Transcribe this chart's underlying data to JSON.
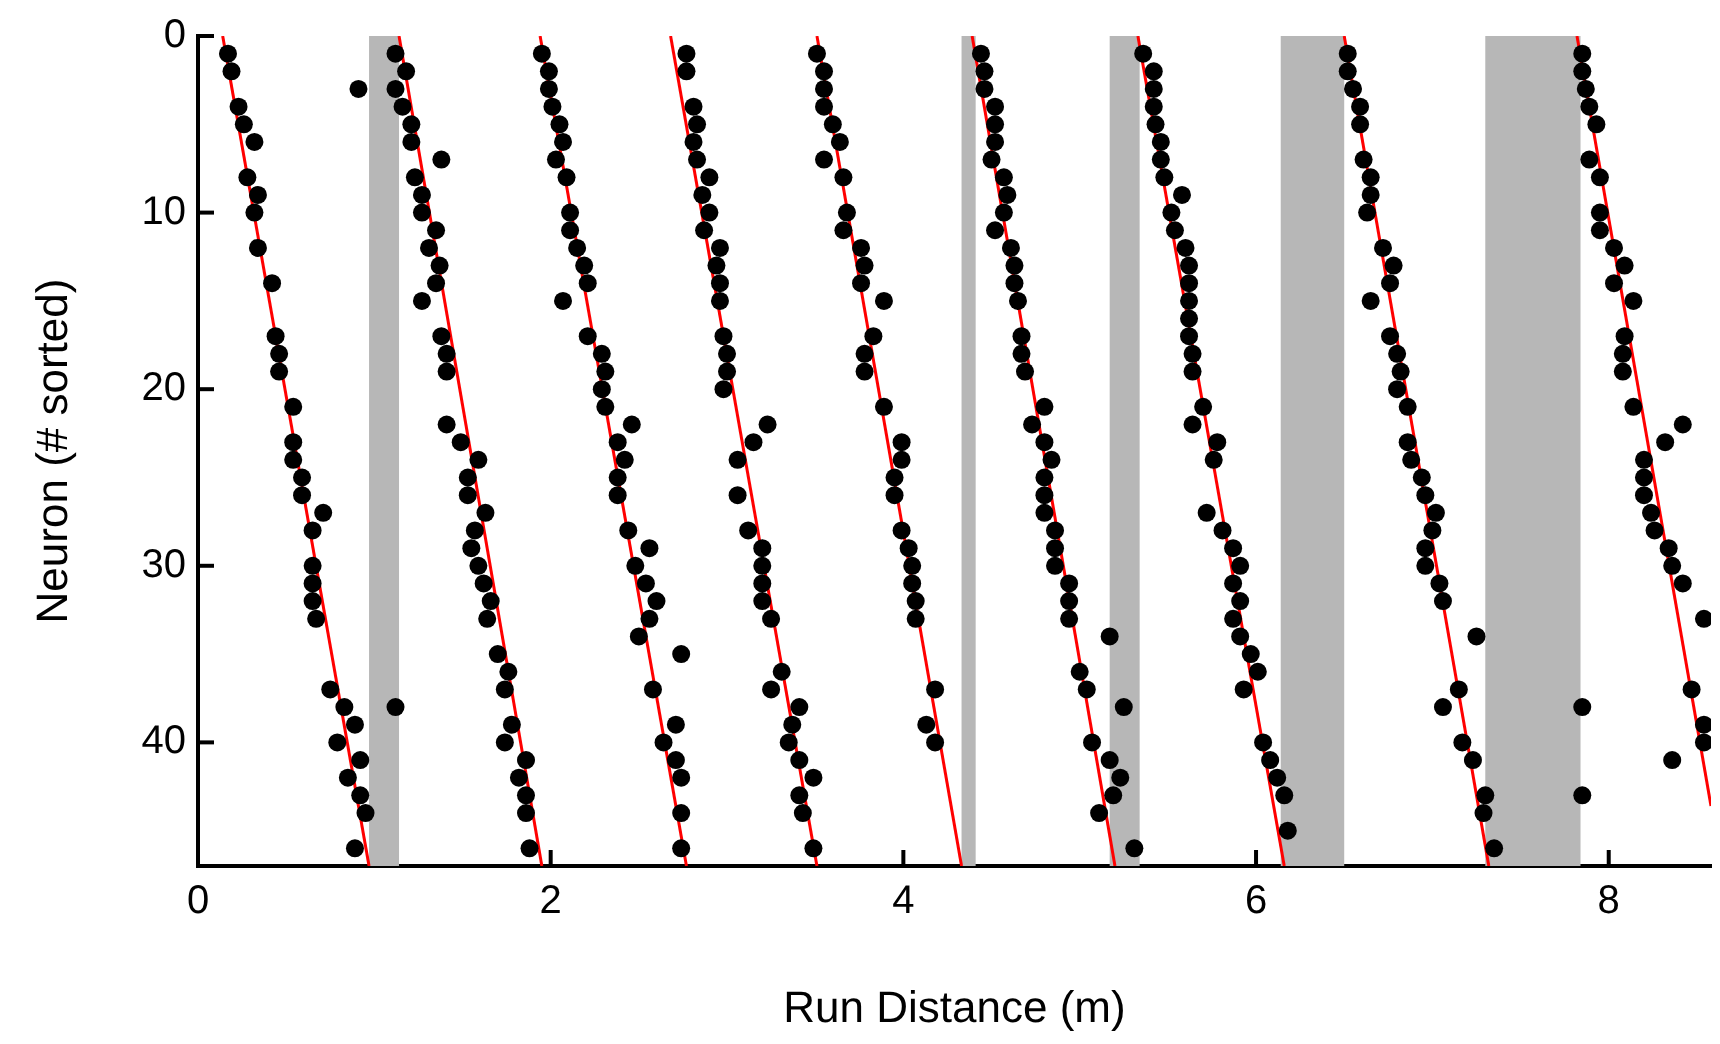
{
  "chart_data": {
    "type": "scatter",
    "xlabel": "Run Distance (m)",
    "ylabel": "Neuron (# sorted)",
    "xlim": [
      0,
      8.58
    ],
    "ylim": [
      47,
      0
    ],
    "xticks": [
      0,
      2,
      4,
      6,
      8
    ],
    "yticks": [
      0,
      10,
      20,
      30,
      40
    ],
    "series": [
      {
        "marker": "circle",
        "color": "#000000",
        "x": [
          0.17,
          0.19,
          0.91,
          0.23,
          0.26,
          0.32,
          0.28,
          0.34,
          0.32,
          0.34,
          0.42,
          0.44,
          0.46,
          0.46,
          0.54,
          0.54,
          0.54,
          0.59,
          0.59,
          0.71,
          0.65,
          0.65,
          0.65,
          0.65,
          0.67,
          0.75,
          0.83,
          0.89,
          0.79,
          0.92,
          0.85,
          0.92,
          0.95,
          0.89
        ],
        "values": [
          1,
          2,
          3,
          4,
          5,
          6,
          8,
          9,
          10,
          12,
          14,
          17,
          18,
          19,
          21,
          23,
          24,
          25,
          26,
          27,
          28,
          30,
          31,
          32,
          33,
          37,
          38,
          39,
          40,
          41,
          42,
          43,
          44,
          46
        ]
      },
      {
        "marker": "circle",
        "color": "#000000",
        "x": [
          1.12,
          1.18,
          1.12,
          1.16,
          1.21,
          1.21,
          1.38,
          1.23,
          1.27,
          1.27,
          1.35,
          1.31,
          1.37,
          1.35,
          1.27,
          1.38,
          1.41,
          1.41,
          1.41,
          1.49,
          1.59,
          1.53,
          1.53,
          1.63,
          1.57,
          1.55,
          1.59,
          1.62,
          1.66,
          1.64,
          1.7,
          1.76,
          1.74,
          1.12,
          1.78,
          1.74,
          1.86,
          1.82,
          1.86,
          1.86,
          1.88
        ],
        "values": [
          1,
          2,
          3,
          4,
          5,
          6,
          7,
          8,
          9,
          10,
          11,
          12,
          13,
          14,
          15,
          17,
          18,
          19,
          22,
          23,
          24,
          25,
          26,
          27,
          28,
          29,
          30,
          31,
          32,
          33,
          35,
          36,
          37,
          38,
          39,
          40,
          41,
          42,
          43,
          44,
          46
        ]
      },
      {
        "marker": "circle",
        "color": "#000000",
        "x": [
          1.95,
          1.99,
          1.99,
          2.01,
          2.05,
          2.07,
          2.03,
          2.09,
          2.11,
          2.11,
          2.15,
          2.19,
          2.21,
          2.07,
          2.21,
          2.29,
          2.31,
          2.29,
          2.31,
          2.46,
          2.38,
          2.42,
          2.38,
          2.38,
          2.44,
          2.56,
          2.48,
          2.54,
          2.6,
          2.56,
          2.5,
          2.74,
          2.58,
          2.71,
          2.64,
          2.71,
          2.74,
          2.74,
          2.74
        ],
        "values": [
          1,
          2,
          3,
          4,
          5,
          6,
          7,
          8,
          10,
          11,
          12,
          13,
          14,
          15,
          17,
          18,
          19,
          20,
          21,
          22,
          23,
          24,
          25,
          26,
          28,
          29,
          30,
          31,
          32,
          33,
          34,
          35,
          37,
          39,
          40,
          41,
          42,
          44,
          46
        ]
      },
      {
        "marker": "circle",
        "color": "#000000",
        "x": [
          2.77,
          2.77,
          2.81,
          2.83,
          2.81,
          2.83,
          2.9,
          2.86,
          2.9,
          2.87,
          2.96,
          2.94,
          2.96,
          2.96,
          2.98,
          3.0,
          3.0,
          2.98,
          3.23,
          3.15,
          3.06,
          3.06,
          3.12,
          3.2,
          3.2,
          3.2,
          3.2,
          3.25,
          3.31,
          3.25,
          3.41,
          3.37,
          3.35,
          3.41,
          3.49,
          3.41,
          3.43,
          3.49
        ],
        "values": [
          1,
          2,
          4,
          5,
          6,
          7,
          8,
          9,
          10,
          11,
          12,
          13,
          14,
          15,
          17,
          18,
          19,
          20,
          22,
          23,
          24,
          26,
          28,
          29,
          30,
          31,
          32,
          33,
          36,
          37,
          38,
          39,
          40,
          41,
          42,
          43,
          44,
          46
        ]
      },
      {
        "marker": "circle",
        "color": "#000000",
        "x": [
          3.51,
          3.55,
          3.55,
          3.55,
          3.6,
          3.64,
          3.55,
          3.66,
          3.68,
          3.66,
          3.76,
          3.78,
          3.76,
          3.89,
          3.83,
          3.78,
          3.78,
          3.89,
          3.99,
          3.99,
          3.95,
          3.95,
          3.99,
          4.03,
          4.05,
          4.05,
          4.07,
          4.07,
          4.18,
          4.13,
          4.18
        ],
        "values": [
          1,
          2,
          3,
          4,
          5,
          6,
          7,
          8,
          10,
          11,
          12,
          13,
          14,
          15,
          17,
          18,
          19,
          21,
          23,
          24,
          25,
          26,
          28,
          29,
          30,
          31,
          32,
          33,
          37,
          39,
          40
        ]
      },
      {
        "marker": "circle",
        "color": "#000000",
        "x": [
          4.44,
          4.46,
          4.46,
          4.52,
          4.52,
          4.52,
          4.5,
          4.57,
          4.59,
          4.57,
          4.52,
          4.61,
          4.63,
          4.63,
          4.65,
          4.67,
          4.67,
          4.69,
          4.8,
          4.73,
          4.8,
          4.84,
          4.8,
          4.8,
          4.8,
          4.86,
          4.86,
          4.86,
          4.94,
          4.94,
          4.94,
          5.17,
          5.0,
          5.04,
          5.25,
          5.07,
          5.17,
          5.23,
          5.19,
          5.11,
          5.31
        ],
        "values": [
          1,
          2,
          3,
          4,
          5,
          6,
          7,
          8,
          9,
          10,
          11,
          12,
          13,
          14,
          15,
          17,
          18,
          19,
          21,
          22,
          23,
          24,
          25,
          26,
          27,
          28,
          29,
          30,
          31,
          32,
          33,
          34,
          36,
          37,
          38,
          40,
          41,
          42,
          43,
          44,
          46
        ]
      },
      {
        "marker": "circle",
        "color": "#000000",
        "x": [
          5.36,
          5.42,
          5.42,
          5.42,
          5.43,
          5.46,
          5.46,
          5.48,
          5.58,
          5.52,
          5.54,
          5.6,
          5.62,
          5.62,
          5.62,
          5.62,
          5.62,
          5.64,
          5.64,
          5.7,
          5.64,
          5.78,
          5.76,
          5.72,
          5.81,
          5.87,
          5.91,
          5.87,
          5.91,
          5.87,
          5.91,
          5.97,
          6.01,
          5.93,
          6.04,
          6.08,
          6.12,
          6.16,
          6.18
        ],
        "values": [
          1,
          2,
          3,
          4,
          5,
          6,
          7,
          8,
          9,
          10,
          11,
          12,
          13,
          14,
          15,
          16,
          17,
          18,
          19,
          21,
          22,
          23,
          24,
          27,
          28,
          29,
          30,
          31,
          32,
          33,
          34,
          35,
          36,
          37,
          40,
          41,
          42,
          43,
          45
        ]
      },
      {
        "marker": "circle",
        "color": "#000000",
        "x": [
          6.52,
          6.52,
          6.55,
          6.59,
          6.59,
          6.61,
          6.65,
          6.65,
          6.63,
          6.72,
          6.78,
          6.76,
          6.65,
          6.76,
          6.8,
          6.82,
          6.8,
          6.86,
          6.86,
          6.88,
          6.94,
          6.96,
          7.02,
          7.0,
          6.96,
          6.96,
          7.04,
          7.06,
          7.25,
          7.15,
          7.06,
          7.17,
          7.23,
          7.3,
          7.29,
          7.35,
          7.85,
          7.85
        ],
        "values": [
          1,
          2,
          3,
          4,
          5,
          7,
          8,
          9,
          10,
          12,
          13,
          14,
          15,
          17,
          18,
          19,
          20,
          21,
          23,
          24,
          25,
          26,
          27,
          28,
          29,
          30,
          31,
          32,
          34,
          37,
          38,
          40,
          41,
          43,
          44,
          46,
          38,
          43
        ]
      },
      {
        "marker": "circle",
        "color": "#000000",
        "x": [
          7.85,
          7.85,
          7.87,
          7.89,
          7.93,
          7.89,
          7.95,
          7.95,
          7.95,
          8.03,
          8.09,
          8.03,
          8.14,
          8.09,
          8.08,
          8.08,
          8.14,
          8.42,
          8.32,
          8.2,
          8.2,
          8.2,
          8.24,
          8.26,
          8.34,
          8.36,
          8.42,
          8.54,
          8.47,
          8.54,
          8.54,
          8.36
        ],
        "values": [
          1,
          2,
          3,
          4,
          5,
          7,
          8,
          10,
          11,
          12,
          13,
          14,
          15,
          17,
          18,
          19,
          21,
          22,
          23,
          24,
          25,
          26,
          27,
          28,
          29,
          30,
          31,
          33,
          37,
          39,
          40,
          41
        ]
      },
      {
        "type": "line",
        "color": "#ff0000",
        "x": [
          0.14,
          0.97
        ],
        "values": [
          0,
          47
        ]
      },
      {
        "type": "line",
        "color": "#ff0000",
        "x": [
          1.14,
          1.95
        ],
        "values": [
          0,
          47
        ]
      },
      {
        "type": "line",
        "color": "#ff0000",
        "x": [
          1.94,
          2.77
        ],
        "values": [
          0,
          47
        ]
      },
      {
        "type": "line",
        "color": "#ff0000",
        "x": [
          2.68,
          3.51
        ],
        "values": [
          0,
          47
        ]
      },
      {
        "type": "line",
        "color": "#ff0000",
        "x": [
          3.51,
          4.33
        ],
        "values": [
          0,
          47
        ]
      },
      {
        "type": "line",
        "color": "#ff0000",
        "x": [
          4.39,
          5.2
        ],
        "values": [
          0,
          47
        ]
      },
      {
        "type": "line",
        "color": "#ff0000",
        "x": [
          5.33,
          6.16
        ],
        "values": [
          0,
          47
        ]
      },
      {
        "type": "line",
        "color": "#ff0000",
        "x": [
          6.5,
          7.32
        ],
        "values": [
          0,
          47
        ]
      },
      {
        "type": "line",
        "color": "#ff0000",
        "x": [
          7.82,
          8.58
        ],
        "values": [
          0,
          43.6
        ]
      }
    ],
    "bands": [
      {
        "axis": "x",
        "from": 0.97,
        "to": 1.14,
        "color": "#b7b7b7"
      },
      {
        "axis": "x",
        "from": 4.33,
        "to": 4.41,
        "color": "#b7b7b7"
      },
      {
        "axis": "x",
        "from": 5.17,
        "to": 5.34,
        "color": "#b7b7b7"
      },
      {
        "axis": "x",
        "from": 6.14,
        "to": 6.5,
        "color": "#b7b7b7"
      },
      {
        "axis": "x",
        "from": 7.3,
        "to": 7.84,
        "color": "#b7b7b7"
      }
    ]
  }
}
